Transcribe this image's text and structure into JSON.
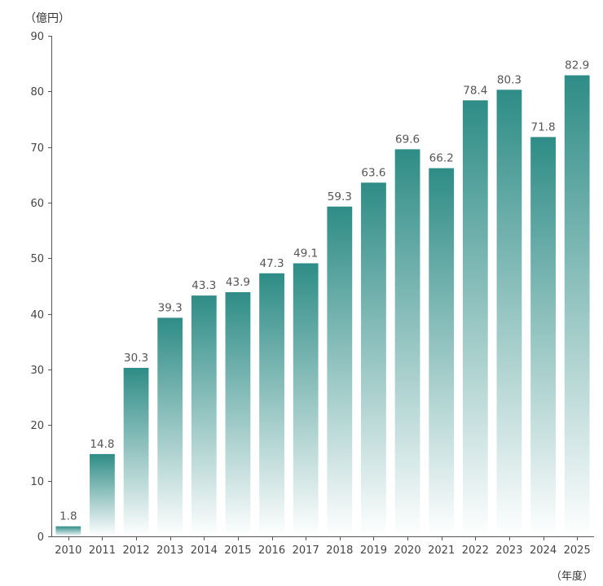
{
  "chart_data": {
    "type": "bar",
    "title": "",
    "y_unit_label": "（億円）",
    "x_unit_label": "（年度）",
    "categories": [
      "2010",
      "2011",
      "2012",
      "2013",
      "2014",
      "2015",
      "2016",
      "2017",
      "2018",
      "2019",
      "2020",
      "2021",
      "2022",
      "2023",
      "2024",
      "2025"
    ],
    "series": [
      {
        "values": [
          1.8,
          14.8,
          30.3,
          39.3,
          43.3,
          43.9,
          47.3,
          49.1,
          59.3,
          63.6,
          69.6,
          66.2,
          78.4,
          80.3,
          71.8,
          82.9
        ],
        "value_labels": [
          "1.8",
          "14.8",
          "30.3",
          "39.3",
          "43.3",
          "43.9",
          "47.3",
          "49.1",
          "59.3",
          "63.6",
          "69.6",
          "66.2",
          "78.4",
          "80.3",
          "71.8",
          "82.9"
        ]
      }
    ],
    "ylim": [
      0,
      90
    ],
    "y_ticks": [
      "0",
      "10",
      "20",
      "30",
      "40",
      "50",
      "60",
      "70",
      "80",
      "90"
    ],
    "grid": false,
    "legend": "none",
    "colors": {
      "bar_top": "#2e8c86",
      "bar_bottom": "#ffffff",
      "axis": "#555555",
      "label": "#444444",
      "value_label": "#555555"
    }
  }
}
